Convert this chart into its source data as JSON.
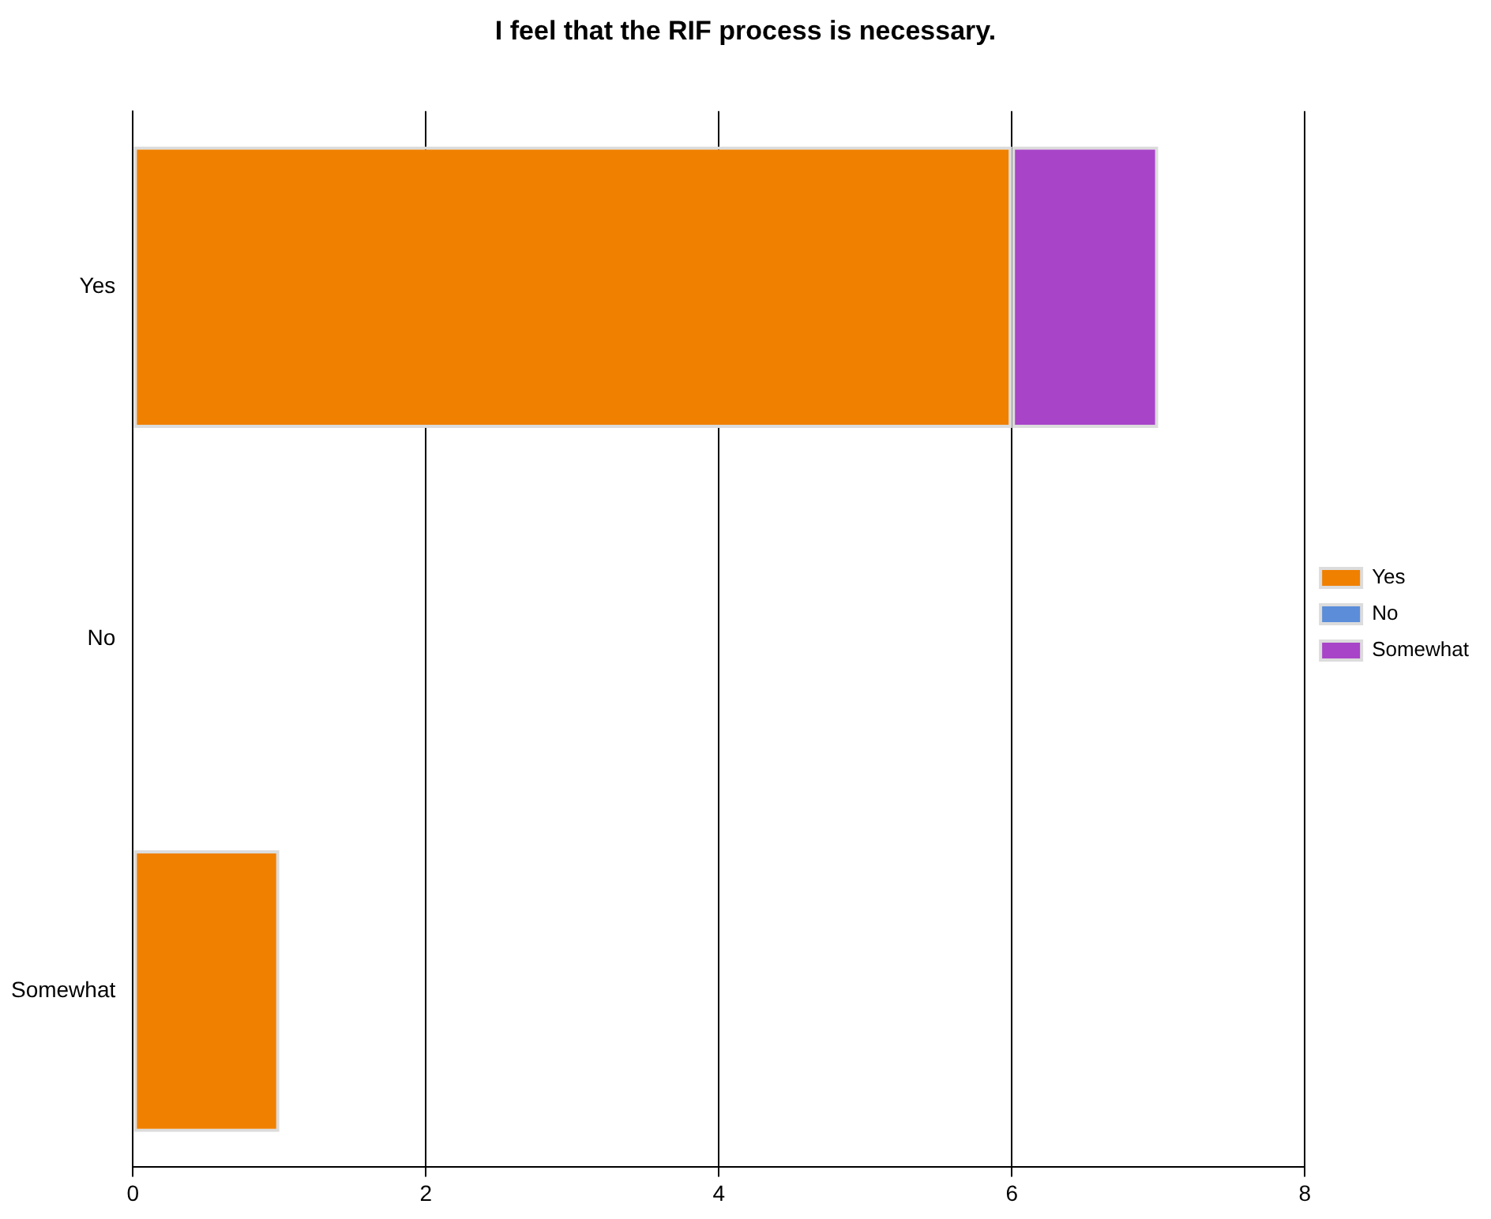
{
  "chart_data": {
    "type": "bar",
    "title": "I feel that the RIF process is necessary.",
    "orientation": "horizontal",
    "stacked": true,
    "categories": [
      "Yes",
      "No",
      "Somewhat"
    ],
    "series": [
      {
        "name": "Yes",
        "color": "#f08000",
        "values": [
          6,
          0,
          1
        ]
      },
      {
        "name": "No",
        "color": "#5b8dd9",
        "values": [
          0,
          0,
          0
        ]
      },
      {
        "name": "Somewhat",
        "color": "#a844c8",
        "values": [
          1,
          0,
          0
        ]
      }
    ],
    "xlim": [
      0,
      8
    ],
    "xticks": [
      0,
      2,
      4,
      6,
      8
    ],
    "grid": "x",
    "legend": "right"
  }
}
